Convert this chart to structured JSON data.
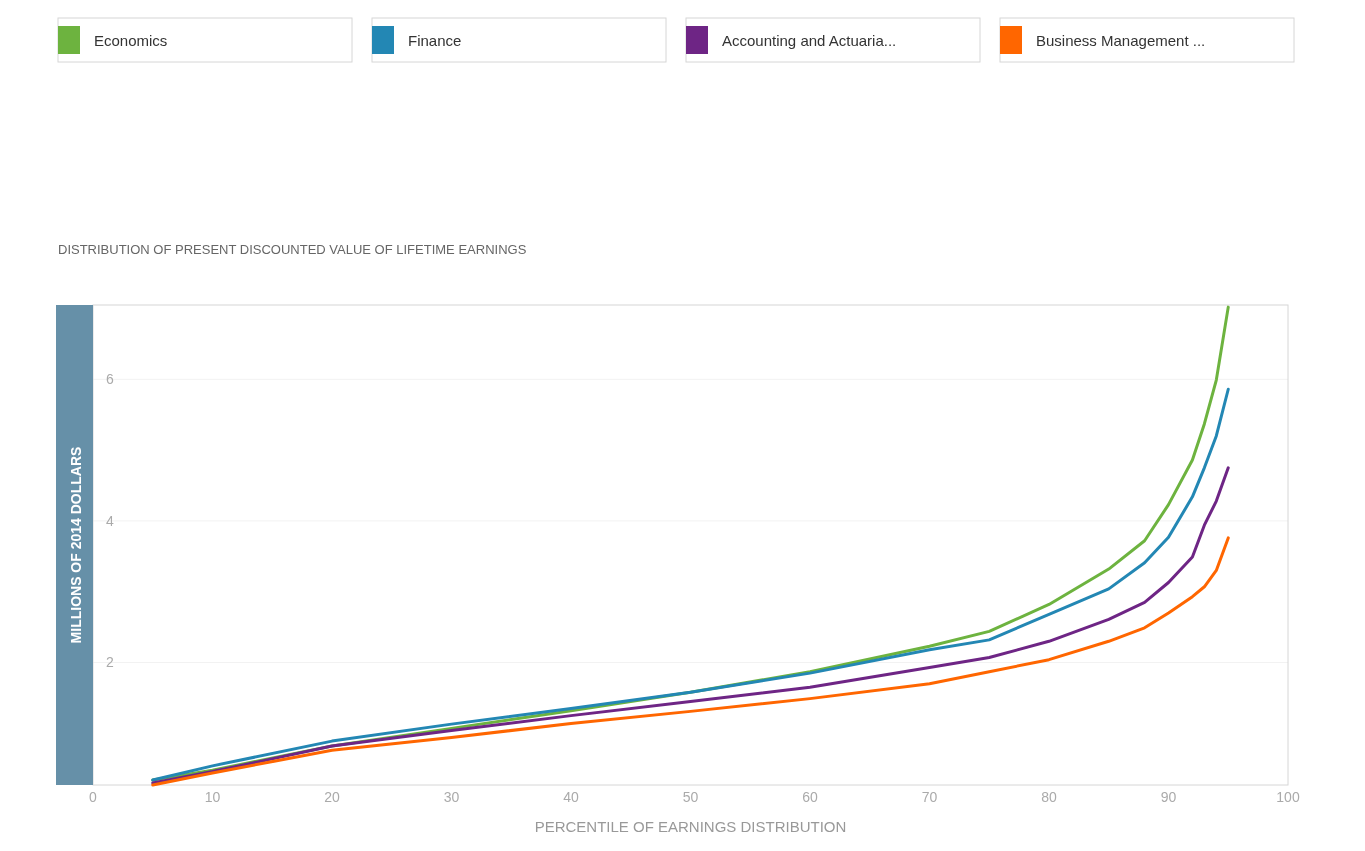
{
  "chart_data": {
    "type": "line",
    "title": "DISTRIBUTION OF PRESENT DISCOUNTED VALUE OF LIFETIME EARNINGS",
    "xlabel": "PERCENTILE OF EARNINGS DISTRIBUTION",
    "ylabel": "MILLIONS OF 2014 DOLLARS",
    "x": [
      5,
      10,
      20,
      30,
      40,
      50,
      60,
      70,
      75,
      80,
      85,
      88,
      90,
      92,
      93,
      94,
      95
    ],
    "series": [
      {
        "name": "Economics",
        "color": "#6db33f",
        "values": [
          0.34,
          0.48,
          0.82,
          1.07,
          1.32,
          1.58,
          1.87,
          2.23,
          2.44,
          2.82,
          3.32,
          3.72,
          4.23,
          4.86,
          5.37,
          5.99,
          7.02
        ]
      },
      {
        "name": "Finance",
        "color": "#2387b4",
        "values": [
          0.34,
          0.54,
          0.89,
          1.13,
          1.35,
          1.58,
          1.85,
          2.18,
          2.32,
          2.68,
          3.04,
          3.41,
          3.77,
          4.34,
          4.75,
          5.2,
          5.86
        ]
      },
      {
        "name": "Accounting and Actuaria...",
        "color": "#6e2585",
        "values": [
          0.3,
          0.46,
          0.82,
          1.04,
          1.25,
          1.45,
          1.65,
          1.93,
          2.07,
          2.3,
          2.61,
          2.85,
          3.13,
          3.49,
          3.94,
          4.28,
          4.75
        ]
      },
      {
        "name": "Business Management ...",
        "color": "#ff6600",
        "values": [
          0.27,
          0.44,
          0.76,
          0.94,
          1.14,
          1.31,
          1.49,
          1.7,
          1.87,
          2.04,
          2.3,
          2.49,
          2.7,
          2.93,
          3.07,
          3.3,
          3.76
        ]
      }
    ],
    "xlim": [
      0,
      100
    ],
    "xticks": [
      0,
      10,
      20,
      30,
      40,
      50,
      60,
      70,
      80,
      90,
      100
    ],
    "ylim": [
      0.27,
      7.05
    ],
    "yticks": [
      2,
      4,
      6
    ],
    "grid": "y",
    "legend": "top",
    "marker": "none",
    "line_style": "solid"
  }
}
